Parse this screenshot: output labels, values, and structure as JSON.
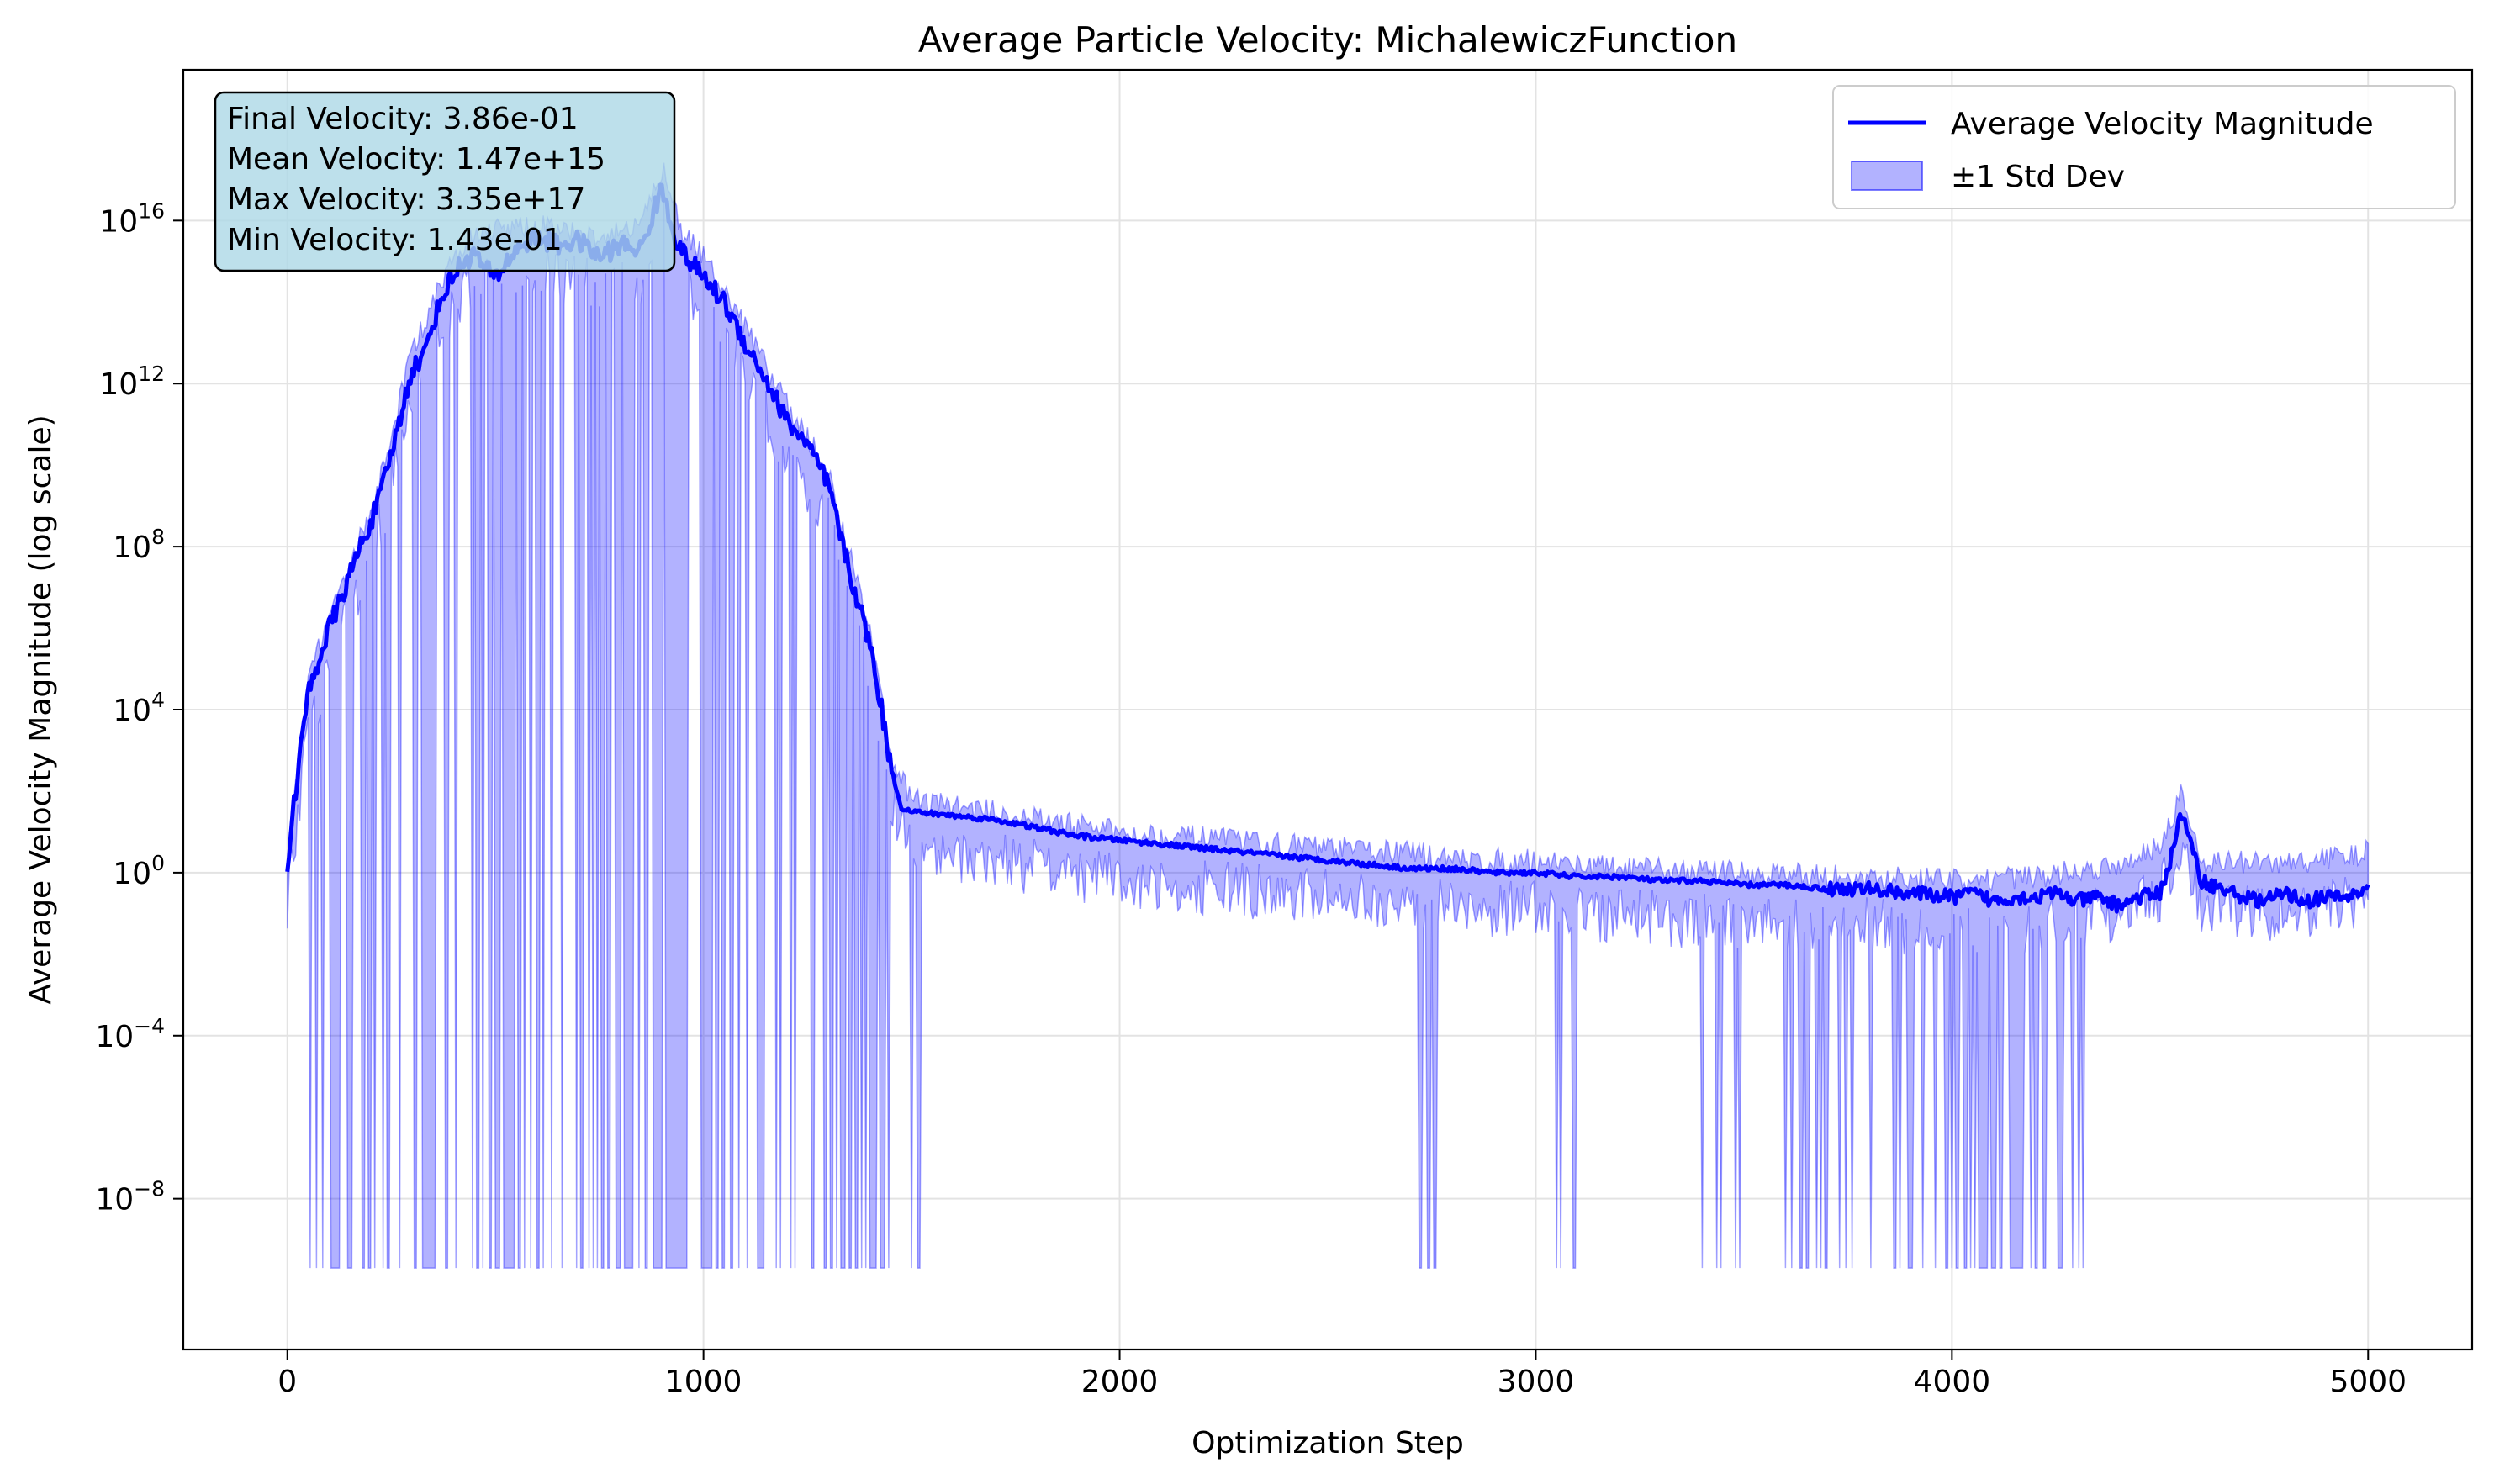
{
  "chart_data": {
    "type": "line",
    "title": "Average Particle Velocity: MichalewiczFunction",
    "xlabel": "Optimization Step",
    "ylabel": "Average Velocity Magnitude (log scale)",
    "xlim": [
      -250,
      5250
    ],
    "ylim_log10": [
      -11.7,
      19.7
    ],
    "y_scale": "log",
    "x_ticks": [
      0,
      1000,
      2000,
      3000,
      4000,
      5000
    ],
    "x_tick_labels": [
      "0",
      "1000",
      "2000",
      "3000",
      "4000",
      "5000"
    ],
    "y_ticks_log10": [
      -8,
      -4,
      0,
      4,
      8,
      12,
      16
    ],
    "y_tick_labels": [
      {
        "base": "10",
        "exp": "−8"
      },
      {
        "base": "10",
        "exp": "−4"
      },
      {
        "base": "10",
        "exp": "0"
      },
      {
        "base": "10",
        "exp": "4"
      },
      {
        "base": "10",
        "exp": "8"
      },
      {
        "base": "10",
        "exp": "12"
      },
      {
        "base": "10",
        "exp": "16"
      }
    ],
    "grid": true,
    "legend_position": "top-right",
    "series": [
      {
        "name": "Average Velocity Magnitude",
        "color": "#0000ff",
        "style": "line",
        "x": [
          0,
          25,
          50,
          75,
          100,
          125,
          150,
          175,
          200,
          225,
          250,
          275,
          300,
          325,
          350,
          375,
          400,
          425,
          450,
          475,
          500,
          550,
          600,
          650,
          700,
          750,
          800,
          850,
          900,
          925,
          950,
          1000,
          1050,
          1100,
          1150,
          1200,
          1250,
          1300,
          1350,
          1400,
          1425,
          1450,
          1475,
          1500,
          1600,
          1700,
          1800,
          1900,
          2000,
          2100,
          2200,
          2300,
          2400,
          2500,
          2600,
          2700,
          2800,
          2900,
          3000,
          3100,
          3200,
          3300,
          3400,
          3500,
          3600,
          3700,
          3800,
          3900,
          4000,
          4050,
          4100,
          4150,
          4200,
          4250,
          4300,
          4350,
          4400,
          4450,
          4500,
          4525,
          4550,
          4600,
          4650,
          4700,
          4750,
          4800,
          4850,
          4900,
          4950,
          4975,
          5000
        ],
        "y_log10": [
          0.2,
          2.5,
          4.4,
          5.2,
          6.0,
          6.6,
          7.3,
          8.0,
          8.6,
          9.3,
          10.3,
          11.3,
          12.4,
          12.6,
          13.5,
          14.2,
          14.7,
          15.0,
          15.2,
          14.8,
          14.6,
          15.3,
          15.6,
          15.4,
          15.5,
          15.1,
          15.4,
          15.3,
          16.8,
          15.8,
          15.2,
          14.6,
          14.0,
          13.0,
          12.1,
          11.1,
          10.5,
          9.5,
          7.4,
          5.6,
          4.2,
          2.6,
          1.6,
          1.5,
          1.4,
          1.3,
          1.1,
          0.9,
          0.8,
          0.7,
          0.6,
          0.5,
          0.4,
          0.3,
          0.2,
          0.1,
          0.1,
          0.0,
          0.0,
          -0.1,
          -0.1,
          -0.2,
          -0.2,
          -0.3,
          -0.3,
          -0.4,
          -0.4,
          -0.5,
          -0.6,
          -0.5,
          -0.7,
          -0.6,
          -0.6,
          -0.5,
          -0.7,
          -0.6,
          -0.8,
          -0.6,
          -0.5,
          0.3,
          1.5,
          -0.2,
          -0.4,
          -0.6,
          -0.7,
          -0.5,
          -0.7,
          -0.6,
          -0.6,
          -0.5,
          -0.4
        ]
      },
      {
        "name": "±1 Std Dev",
        "color": "#0000ff",
        "style": "band",
        "opacity": 0.3,
        "x_upper": [
          0,
          50,
          100,
          200,
          300,
          400,
          450,
          550,
          650,
          750,
          850,
          900,
          950,
          1000,
          1100,
          1200,
          1300,
          1400,
          1450,
          1500,
          2000,
          2500,
          2700,
          2800,
          3000,
          3200,
          3500,
          3800,
          4000,
          4200,
          4400,
          4500,
          4550,
          4600,
          4800,
          5000
        ],
        "y_upper_log10": [
          0.3,
          4.6,
          6.3,
          8.8,
          12.8,
          15.1,
          15.6,
          15.9,
          15.8,
          15.6,
          15.8,
          17.3,
          15.7,
          15.1,
          13.4,
          11.5,
          9.8,
          5.9,
          2.9,
          1.8,
          1.0,
          0.6,
          0.5,
          0.3,
          0.3,
          0.1,
          0.0,
          -0.1,
          -0.2,
          -0.1,
          0.2,
          0.7,
          1.9,
          0.3,
          0.2,
          0.5
        ],
        "lower_floor_log10": -9.7,
        "lower_dip_regions": [
          [
            55,
            1450
          ],
          [
            1500,
            1520
          ],
          [
            2720,
            2760
          ],
          [
            3050,
            3060
          ],
          [
            3090,
            3100
          ],
          [
            3400,
            3500
          ],
          [
            3600,
            4000
          ],
          [
            4000,
            4320
          ]
        ]
      }
    ],
    "stats_box": [
      "Final Velocity: 3.86e-01",
      "Mean Velocity: 1.47e+15",
      "Max Velocity: 3.35e+17",
      "Min Velocity: 1.43e-01"
    ],
    "stats_box_color": "#add8e6"
  }
}
